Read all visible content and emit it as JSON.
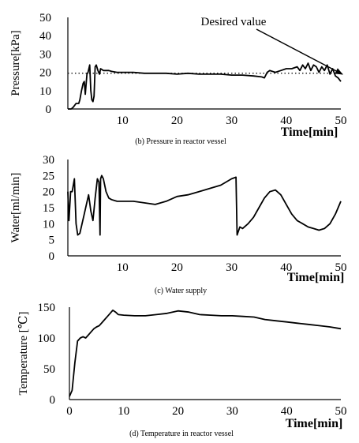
{
  "chart_data": [
    {
      "type": "line",
      "caption": "(b) Pressure in reactor vessel",
      "xlabel": "Time[min]",
      "ylabel": "Pressure[kPa]",
      "xlim": [
        0,
        50
      ],
      "ylim": [
        0,
        50
      ],
      "xticks": [
        "10",
        "20",
        "30",
        "40",
        "50"
      ],
      "yticks": [
        "0",
        "10",
        "20",
        "30",
        "40",
        "50"
      ],
      "reference_line": {
        "label": "Desired value",
        "y": 19.5,
        "style": "dotted"
      },
      "series": [
        {
          "x": [
            0,
            0.6,
            1.0,
            1.5,
            2.0,
            2.2,
            2.5,
            2.8,
            3.0,
            3.2,
            3.5,
            3.7,
            4.0,
            4.2,
            4.4,
            4.6,
            4.8,
            5.0,
            5.2,
            5.5,
            5.8,
            6.0,
            6.5,
            7.0,
            7.5,
            8.0,
            9.0,
            10.0,
            12.0,
            14.0,
            16.0,
            18.0,
            20.0,
            22.0,
            24.0,
            26.0,
            28.0,
            30.0,
            32.0,
            34.0,
            35.5,
            36.0,
            36.5,
            37.0,
            38.0,
            39.0,
            40.0,
            41.0,
            42.0,
            42.5,
            43.0,
            43.5,
            44.0,
            44.5,
            45.0,
            45.5,
            46.0,
            46.5,
            47.0,
            47.5,
            48.0,
            48.5,
            49.0,
            49.5,
            50.0
          ],
          "y": [
            0,
            0,
            1,
            3,
            3,
            5,
            10,
            14,
            15,
            8,
            19,
            20,
            24,
            10,
            5,
            4,
            7,
            23,
            24,
            21,
            19,
            22,
            21,
            21,
            21,
            20.5,
            20,
            20,
            20,
            19.5,
            19.5,
            19.5,
            19,
            19.5,
            19,
            19,
            19,
            18.5,
            18.5,
            18,
            17.5,
            17,
            20,
            21,
            20,
            21,
            22,
            22,
            23,
            21,
            24,
            22,
            25,
            21,
            24,
            23,
            20,
            23,
            21,
            24,
            19,
            22,
            18,
            17,
            15
          ]
        }
      ]
    },
    {
      "type": "line",
      "caption": "(c) Water supply",
      "xlabel": "Time[min]",
      "ylabel": "Water[ml/min]",
      "xlim": [
        0,
        50
      ],
      "ylim": [
        0,
        30
      ],
      "xticks": [
        "10",
        "20",
        "30",
        "40",
        "50"
      ],
      "yticks": [
        "0",
        "5",
        "10",
        "15",
        "20",
        "25",
        "30"
      ],
      "series": [
        {
          "x": [
            0,
            0.2,
            0.5,
            0.8,
            1.2,
            1.5,
            1.8,
            2.2,
            2.6,
            3.0,
            3.4,
            3.8,
            4.2,
            4.6,
            5.0,
            5.4,
            5.7,
            5.9,
            6.0,
            6.2,
            6.5,
            7.0,
            7.5,
            8.0,
            9.0,
            10.0,
            12.0,
            14.0,
            16.0,
            18.0,
            20.0,
            22.0,
            24.0,
            26.0,
            28.0,
            30.0,
            30.8,
            31.0,
            31.5,
            32.0,
            33.0,
            34.0,
            35.0,
            36.0,
            37.0,
            38.0,
            39.0,
            40.0,
            41.0,
            42.0,
            43.0,
            44.0,
            45.0,
            46.0,
            47.0,
            48.0,
            49.0,
            50.0
          ],
          "y": [
            20,
            11,
            20,
            20,
            24,
            10,
            6.5,
            7,
            10,
            13,
            16,
            19,
            14,
            11,
            18,
            24,
            23,
            6.5,
            24,
            25,
            24,
            20,
            18,
            17.5,
            17,
            17,
            17,
            16.5,
            16,
            17,
            18.5,
            19,
            20,
            21,
            22,
            24,
            24.5,
            6.5,
            9,
            8.5,
            10,
            12,
            15,
            18,
            20,
            20.5,
            19,
            16,
            13,
            11,
            10,
            9,
            8.5,
            8,
            8.5,
            10,
            13,
            17
          ]
        }
      ]
    },
    {
      "type": "line",
      "caption": "(d) Temperature in reactor vessel",
      "xlabel": "Time[min]",
      "ylabel": "Temperature [℃]",
      "xlim": [
        0,
        50
      ],
      "ylim": [
        0,
        150
      ],
      "xticks": [
        "0",
        "10",
        "20",
        "30",
        "40",
        "50"
      ],
      "yticks": [
        "0",
        "50",
        "100",
        "150"
      ],
      "series": [
        {
          "x": [
            0,
            0.5,
            1.0,
            1.5,
            2.0,
            2.5,
            3.0,
            3.5,
            4.0,
            4.5,
            5.0,
            5.5,
            6.0,
            6.5,
            7.0,
            7.5,
            8.0,
            8.5,
            9.0,
            10.0,
            12.0,
            14.0,
            16.0,
            18.0,
            20.0,
            22.0,
            24.0,
            26.0,
            28.0,
            30.0,
            32.0,
            34.0,
            36.0,
            38.0,
            40.0,
            42.0,
            44.0,
            46.0,
            48.0,
            50.0
          ],
          "y": [
            5,
            15,
            60,
            95,
            100,
            102,
            100,
            105,
            110,
            115,
            118,
            120,
            125,
            130,
            135,
            140,
            145,
            142,
            138,
            137,
            136,
            136,
            138,
            140,
            144,
            142,
            138,
            137,
            136,
            136,
            135,
            134,
            130,
            128,
            126,
            124,
            122,
            120,
            118,
            115
          ]
        }
      ]
    }
  ]
}
